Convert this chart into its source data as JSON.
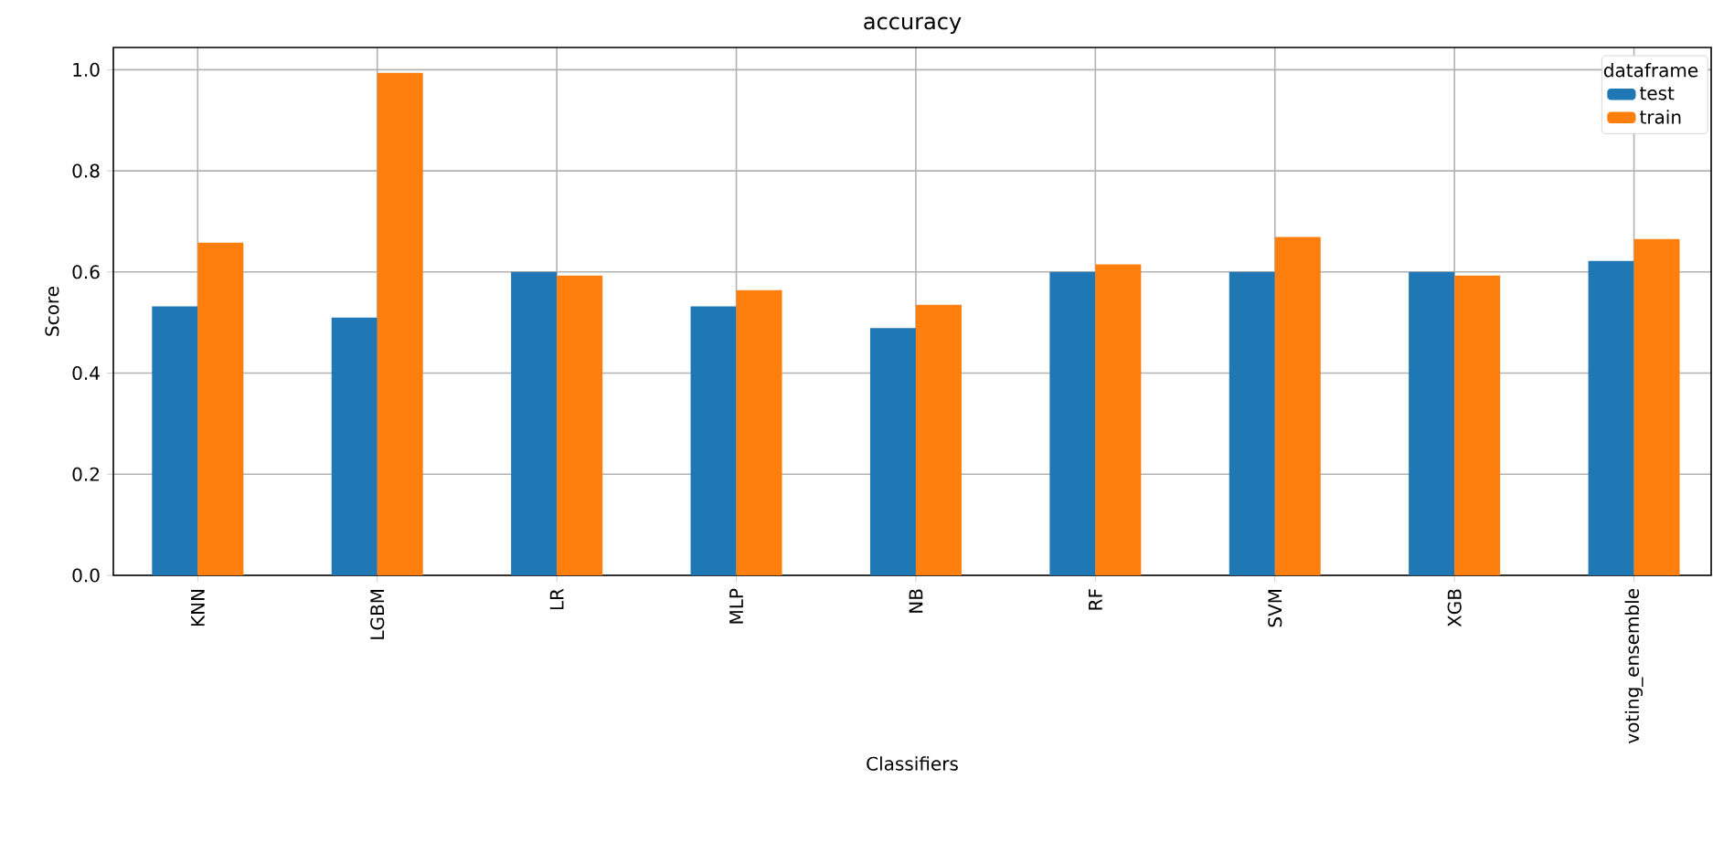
{
  "chart_data": {
    "type": "bar",
    "title": "accuracy",
    "xlabel": "Classifiers",
    "ylabel": "Score",
    "legend_title": "dataframe",
    "categories": [
      "KNN",
      "LGBM",
      "LR",
      "MLP",
      "NB",
      "RF",
      "SVM",
      "XGB",
      "voting_ensemble"
    ],
    "series": [
      {
        "name": "test",
        "color": "#1f77b4",
        "values": [
          0.532,
          0.51,
          0.6,
          0.532,
          0.489,
          0.6,
          0.6,
          0.6,
          0.622
        ]
      },
      {
        "name": "train",
        "color": "#ff7f0e",
        "values": [
          0.658,
          0.994,
          0.593,
          0.564,
          0.535,
          0.615,
          0.669,
          0.593,
          0.665
        ]
      }
    ],
    "ylim": [
      0,
      1.044
    ],
    "yticks": [
      {
        "value": 0,
        "label": "0.0"
      },
      0.2,
      0.4,
      0.6,
      0.8,
      {
        "value": 1,
        "label": "1.0"
      }
    ],
    "grid": true,
    "legend": "top right"
  }
}
